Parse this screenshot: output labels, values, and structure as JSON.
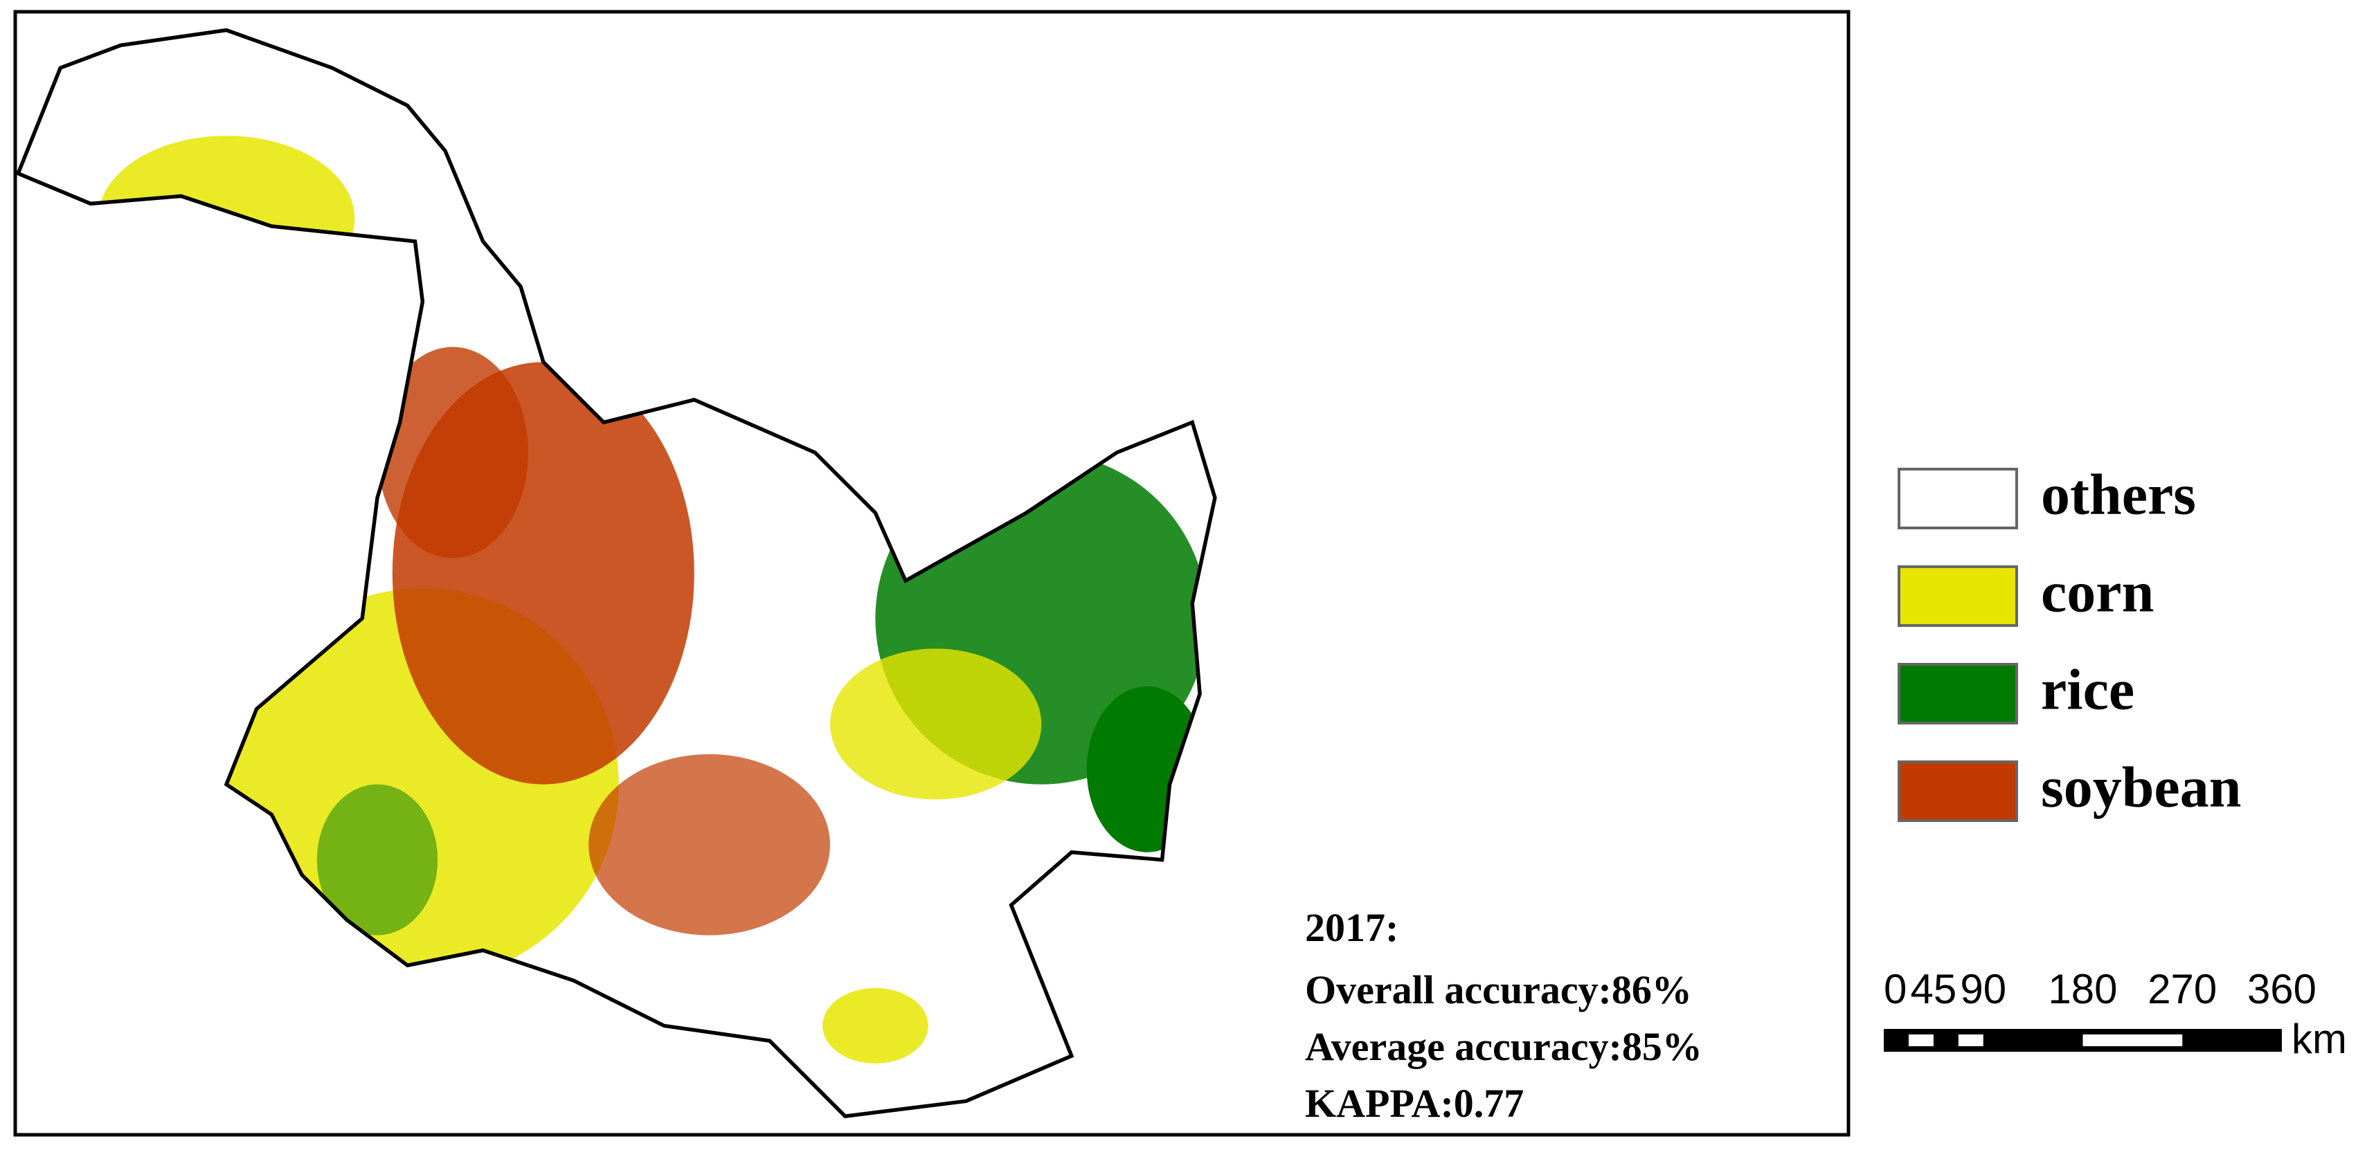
{
  "legend": {
    "items": [
      {
        "label": "others",
        "color": "#ffffff"
      },
      {
        "label": "corn",
        "color": "#e6e600"
      },
      {
        "label": "rice",
        "color": "#007a00"
      },
      {
        "label": "soybean",
        "color": "#c23a00"
      }
    ]
  },
  "annotation": {
    "year": "2017:",
    "lines": [
      "Overall accuracy:86%",
      "Average accuracy:85%",
      "KAPPA:0.77"
    ]
  },
  "scale_bar": {
    "ticks": [
      0,
      45,
      90,
      180,
      270,
      360
    ],
    "unit": "km"
  }
}
